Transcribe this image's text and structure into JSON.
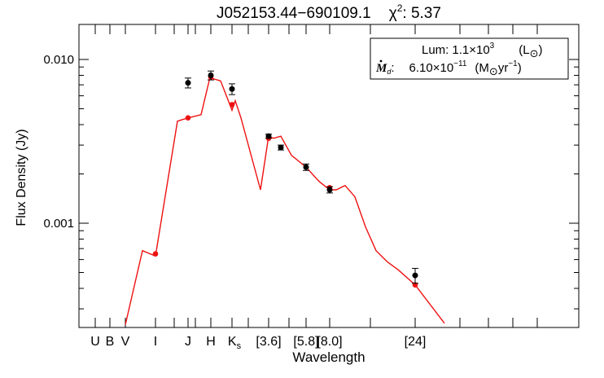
{
  "chart_data": {
    "type": "line",
    "title_object": "J052153.44−690109.1",
    "title_chi_label": "χ",
    "title_chi_exp": "2",
    "title_chi_value": ": 5.37",
    "xlabel": "Wavelength",
    "ylabel": "Flux Density (Jy)",
    "y_scale": "log",
    "ylim": [
      0.00025,
      0.016
    ],
    "y_ticks": [
      {
        "value": 0.01,
        "label": "0.010"
      },
      {
        "value": 0.001,
        "label": "0.001"
      }
    ],
    "x_tick_labels": [
      {
        "band": "U",
        "label": "U",
        "sub": ""
      },
      {
        "band": "B",
        "label": "B",
        "sub": ""
      },
      {
        "band": "V",
        "label": "V",
        "sub": ""
      },
      {
        "band": "I",
        "label": "I",
        "sub": ""
      },
      {
        "band": "J",
        "label": "J",
        "sub": ""
      },
      {
        "band": "H",
        "label": "H",
        "sub": ""
      },
      {
        "band": "Ks",
        "label": "K",
        "sub": "s"
      },
      {
        "band": "3.6",
        "label": "[3.6]",
        "sub": ""
      },
      {
        "band": "5.8",
        "label": "[5.8]",
        "sub": ""
      },
      {
        "band": "8.0",
        "label": "[8.0]",
        "sub": ""
      },
      {
        "band": "24",
        "label": "[24]",
        "sub": ""
      }
    ],
    "model_color": "#ee1111",
    "observed_color": "#000000",
    "model_curve": [
      {
        "band": "V",
        "y": 0.00024
      },
      {
        "band": "V-I",
        "y": 0.00068
      },
      {
        "band": "I",
        "y": 0.00063
      },
      {
        "band": "J-",
        "y": 0.0042
      },
      {
        "band": "J",
        "y": 0.0044
      },
      {
        "band": "J+",
        "y": 0.0046
      },
      {
        "band": "H-",
        "y": 0.0078
      },
      {
        "band": "H",
        "y": 0.0077
      },
      {
        "band": "H+",
        "y": 0.0074
      },
      {
        "band": "Ks",
        "y": 0.0049
      },
      {
        "band": "Ks+",
        "y": 0.0056
      },
      {
        "band": "Ks++",
        "y": 0.0044
      },
      {
        "band": "3.6-",
        "y": 0.0016
      },
      {
        "band": "3.6",
        "y": 0.0034
      },
      {
        "band": "3.6+",
        "y": 0.0033
      },
      {
        "band": "4.5",
        "y": 0.0034
      },
      {
        "band": "4.5+",
        "y": 0.0026
      },
      {
        "band": "5.8",
        "y": 0.0022
      },
      {
        "band": "5.8+",
        "y": 0.0018
      },
      {
        "band": "8.0",
        "y": 0.0016
      },
      {
        "band": "8.0+",
        "y": 0.0016
      },
      {
        "band": "10",
        "y": 0.0017
      },
      {
        "band": "12",
        "y": 0.00145
      },
      {
        "band": "14",
        "y": 0.00095
      },
      {
        "band": "16",
        "y": 0.00068
      },
      {
        "band": "18",
        "y": 0.00058
      },
      {
        "band": "20",
        "y": 0.00052
      },
      {
        "band": "24",
        "y": 0.00042
      },
      {
        "band": "30",
        "y": 0.000245
      }
    ],
    "model_points": [
      {
        "band": "I",
        "y": 0.00065
      },
      {
        "band": "J",
        "y": 0.0044
      },
      {
        "band": "H",
        "y": 0.0078
      },
      {
        "band": "Ks",
        "y": 0.0053
      },
      {
        "band": "3.6",
        "y": 0.0033
      },
      {
        "band": "8.0",
        "y": 0.00165
      },
      {
        "band": "24",
        "y": 0.00042
      }
    ],
    "observed_points": [
      {
        "band": "J",
        "y": 0.0072,
        "err": 0.0005
      },
      {
        "band": "H",
        "y": 0.008,
        "err": 0.0005
      },
      {
        "band": "Ks",
        "y": 0.0066,
        "err": 0.0005
      },
      {
        "band": "3.6",
        "y": 0.0034,
        "err": 0.0001
      },
      {
        "band": "4.5",
        "y": 0.0029,
        "err": 0.0001
      },
      {
        "band": "5.8",
        "y": 0.0022,
        "err": 0.0001
      },
      {
        "band": "8.0",
        "y": 0.0016,
        "err": 7e-05
      },
      {
        "band": "24",
        "y": 0.00048,
        "err": 5e-05
      }
    ],
    "legend": {
      "lum_label": "Lum:",
      "lum_mantissa": "1.1×10",
      "lum_exp": "3",
      "lum_unit_open": "(L",
      "lum_unit_sun": "⊙",
      "lum_unit_close": ")",
      "mdot_symbol": "M",
      "mdot_sub": "d",
      "mdot_colon": ":",
      "mdot_mantissa": "6.10×10",
      "mdot_exp": "−11",
      "mdot_unit_open": "(M",
      "mdot_unit_sun": "⊙",
      "mdot_unit_mid": "yr",
      "mdot_unit_exp": "−1",
      "mdot_unit_close": ")"
    }
  }
}
